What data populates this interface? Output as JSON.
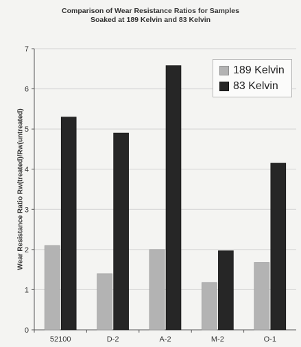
{
  "chart_data": {
    "type": "bar",
    "title": "Comparison of Wear Resistance Ratios for Samples",
    "subtitle": "Soaked at 189 Kelvin and 83 Kelvin",
    "xlabel": "",
    "ylabel": "Wear Resistance Ratio Rw(treated)/Rw(untreated)",
    "ylim": [
      0,
      7
    ],
    "yticks": [
      "0",
      "1",
      "2",
      "3",
      "4",
      "5",
      "6",
      "7"
    ],
    "grid": true,
    "legend_position": "top-right",
    "categories": [
      "52100",
      "D-2",
      "A-2",
      "M-2",
      "O-1"
    ],
    "series": [
      {
        "name": "189 Kelvin",
        "color": "#b3b3b3",
        "values": [
          2.1,
          1.4,
          2.0,
          1.18,
          1.68
        ]
      },
      {
        "name": "83 Kelvin",
        "color": "#262626",
        "values": [
          5.3,
          4.9,
          6.58,
          1.97,
          4.15
        ]
      }
    ]
  }
}
